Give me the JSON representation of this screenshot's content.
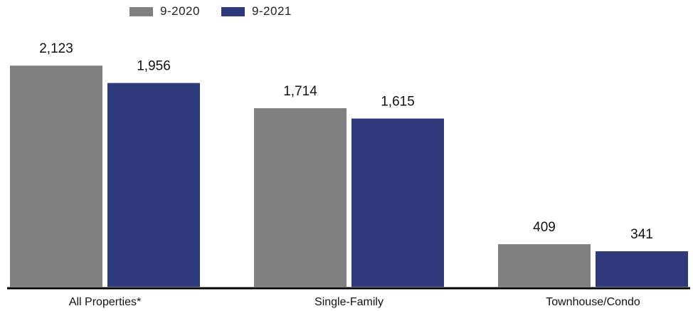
{
  "chart_data": {
    "type": "bar",
    "categories": [
      "All Properties*",
      "Single-Family",
      "Townhouse/Condo"
    ],
    "series": [
      {
        "name": "9-2020",
        "color": "#808080",
        "values": [
          2123,
          1714,
          409
        ],
        "labels": [
          "2,123",
          "1,714",
          "409"
        ]
      },
      {
        "name": "9-2021",
        "color": "#2e3a7c",
        "values": [
          1956,
          1615,
          341
        ],
        "labels": [
          "1,956",
          "1,615",
          "341"
        ]
      }
    ],
    "title": "",
    "xlabel": "",
    "ylabel": "",
    "ylim": [
      0,
      2500
    ],
    "grid": false,
    "legend": "top-left",
    "axis_color": "#000000"
  }
}
